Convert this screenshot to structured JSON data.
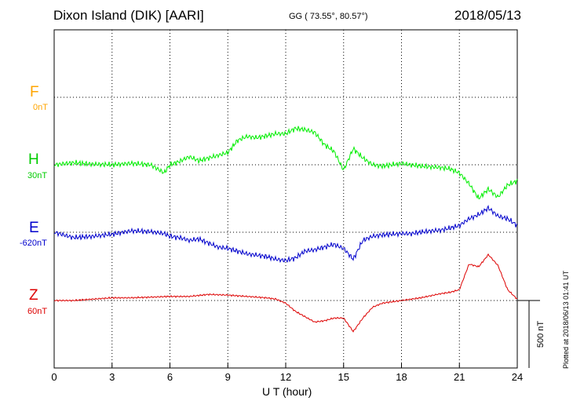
{
  "header": {
    "station": "Dixon Island (DIK)  [AARI]",
    "coords": "GG ( 73.55°,  80.57°)",
    "date": "2018/05/13"
  },
  "footer": {
    "plotted": "Plotted at 2018/06/13 01:41  UT"
  },
  "components": [
    {
      "key": "F",
      "letter": "F",
      "baseline": "0nT",
      "color": "#FFA500"
    },
    {
      "key": "H",
      "letter": "H",
      "baseline": "30nT",
      "color": "#00EE00"
    },
    {
      "key": "E",
      "letter": "E",
      "baseline": "-620nT",
      "color": "#0000CC"
    },
    {
      "key": "Z",
      "letter": "Z",
      "baseline": "60nT",
      "color": "#DD0000"
    }
  ],
  "chart_data": {
    "type": "line",
    "title": "Dixon Island (DIK)  [AARI]",
    "xlabel": "U T (hour)",
    "xlim": [
      0,
      24
    ],
    "x_ticks": [
      0,
      3,
      6,
      9,
      12,
      15,
      18,
      21,
      24
    ],
    "x_tick_labels": [
      "0",
      "3",
      "6",
      "9",
      "12",
      "15",
      "18",
      "21",
      "24"
    ],
    "scale_bar": {
      "label": "500 nT",
      "value_nT": 500
    },
    "grid": true,
    "series": [
      {
        "name": "H",
        "baseline_label": "30nT",
        "unit": "nT",
        "x": [
          0,
          1,
          2,
          3,
          4,
          5,
          5.7,
          6,
          6.5,
          7,
          7.5,
          8,
          8.5,
          9,
          9.5,
          10,
          10.5,
          11,
          11.5,
          12,
          12.5,
          13,
          13.5,
          14,
          14.5,
          15,
          15.5,
          16,
          16.5,
          17,
          17.5,
          18,
          18.5,
          19,
          19.5,
          20,
          20.5,
          21,
          21.5,
          22,
          22.5,
          23,
          23.5,
          24
        ],
        "y": [
          0,
          15,
          5,
          0,
          10,
          0,
          -60,
          0,
          25,
          60,
          30,
          50,
          70,
          90,
          180,
          210,
          200,
          215,
          230,
          230,
          270,
          260,
          240,
          150,
          100,
          -40,
          120,
          50,
          0,
          -10,
          0,
          10,
          0,
          -10,
          -15,
          -20,
          -30,
          -60,
          -140,
          -250,
          -180,
          -240,
          -150,
          -120
        ]
      },
      {
        "name": "E",
        "baseline_label": "-620nT",
        "unit": "nT",
        "x": [
          0,
          1,
          2,
          3,
          4,
          5,
          5.7,
          6,
          6.5,
          7,
          7.5,
          8,
          8.5,
          9,
          9.5,
          10,
          10.5,
          11,
          11.5,
          12,
          12.5,
          13,
          13.5,
          14,
          14.5,
          15,
          15.5,
          16,
          16.5,
          17,
          17.5,
          18,
          18.5,
          19,
          19.5,
          20,
          20.5,
          21,
          21.5,
          22,
          22.5,
          23,
          23.5,
          24
        ],
        "y": [
          0,
          -40,
          -30,
          -15,
          10,
          5,
          -10,
          -30,
          -40,
          -60,
          -50,
          -80,
          -110,
          -120,
          -140,
          -160,
          -170,
          -180,
          -200,
          -210,
          -190,
          -140,
          -130,
          -110,
          -90,
          -120,
          -200,
          -60,
          -30,
          -20,
          -15,
          -10,
          -10,
          0,
          10,
          15,
          30,
          50,
          100,
          130,
          180,
          120,
          100,
          50
        ]
      },
      {
        "name": "Z",
        "baseline_label": "60nT",
        "unit": "nT",
        "x": [
          0,
          1,
          2,
          3,
          4,
          5,
          6,
          7,
          8,
          9,
          10,
          11,
          11.5,
          12,
          12.5,
          13,
          13.5,
          14,
          14.5,
          15,
          15.5,
          16,
          16.5,
          17,
          17.5,
          18,
          19,
          20,
          20.5,
          21,
          21.5,
          22,
          22.5,
          23,
          23.5,
          24
        ],
        "y": [
          0,
          0,
          10,
          20,
          20,
          25,
          30,
          30,
          45,
          40,
          30,
          20,
          10,
          -20,
          -80,
          -120,
          -160,
          -150,
          -130,
          -130,
          -230,
          -130,
          -50,
          -20,
          -10,
          0,
          20,
          50,
          60,
          80,
          270,
          250,
          340,
          260,
          80,
          10
        ]
      },
      {
        "name": "F",
        "baseline_label": "0nT",
        "unit": "nT",
        "x": [],
        "y": []
      }
    ]
  }
}
